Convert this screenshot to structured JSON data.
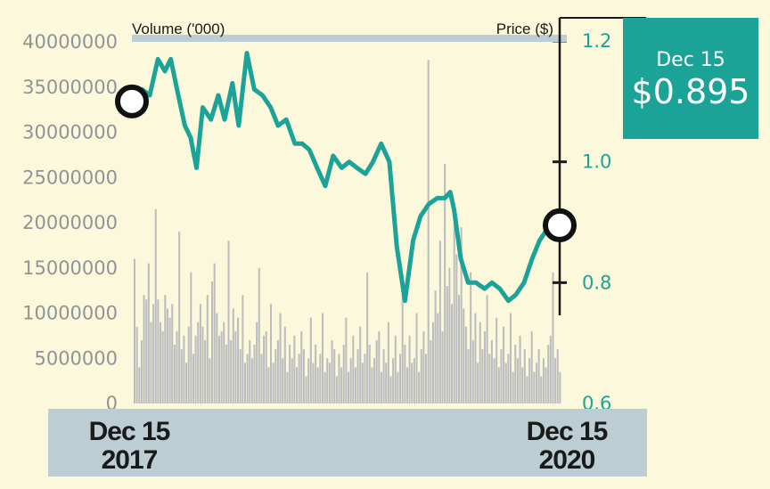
{
  "chart_data": {
    "type": "line",
    "title": "",
    "colors": {
      "price_line": "#1ba397",
      "volume_bars": "#bcbdbf",
      "callout_bg": "#1ba397",
      "date_band": "#bccdd4",
      "axis": "#1a1a1a"
    },
    "volume_axis": {
      "label": "Volume ('000)",
      "ylim": [
        0,
        40000000
      ],
      "ticks": [
        "40000000",
        "35000000",
        "30000000",
        "25000000",
        "20000000",
        "15000000",
        "10000000",
        "5000000",
        "0"
      ]
    },
    "price_axis": {
      "label": "Price ($)",
      "ylim": [
        0.6,
        1.2
      ],
      "ticks": [
        "1.2",
        "1.0",
        "0.8",
        "0.6"
      ]
    },
    "x_axis": {
      "start_label": {
        "line1": "Dec 15",
        "line2": "2017"
      },
      "end_label": {
        "line1": "Dec 15",
        "line2": "2020"
      }
    },
    "callout": {
      "date": "Dec 15",
      "price": "$0.895"
    },
    "series": [
      {
        "axis": "price",
        "x": [
          "2017-12-15",
          "2018-01-05",
          "2018-01-25",
          "2018-02-15",
          "2018-03-05",
          "2018-03-20",
          "2018-04-05",
          "2018-04-25",
          "2018-05-10",
          "2018-05-25",
          "2018-06-10",
          "2018-07-01",
          "2018-07-20",
          "2018-08-05",
          "2018-08-25",
          "2018-09-10",
          "2018-10-01",
          "2018-10-20",
          "2018-11-10",
          "2018-12-01",
          "2018-12-20",
          "2019-01-10",
          "2019-02-01",
          "2019-02-20",
          "2019-03-10",
          "2019-03-30",
          "2019-04-20",
          "2019-05-10",
          "2019-06-01",
          "2019-06-20",
          "2019-07-10",
          "2019-08-01",
          "2019-08-20",
          "2019-09-10",
          "2019-10-01",
          "2019-10-20",
          "2019-11-10",
          "2019-12-01",
          "2019-12-20",
          "2020-01-10",
          "2020-02-01",
          "2020-02-20",
          "2020-03-05",
          "2020-03-15",
          "2020-04-01",
          "2020-04-20",
          "2020-05-10",
          "2020-06-01",
          "2020-06-20",
          "2020-07-10",
          "2020-08-01",
          "2020-08-20",
          "2020-09-10",
          "2020-10-01",
          "2020-10-20",
          "2020-11-10",
          "2020-11-25",
          "2020-12-15"
        ],
        "y": [
          1.1,
          1.12,
          1.11,
          1.17,
          1.15,
          1.17,
          1.12,
          1.06,
          1.04,
          0.99,
          1.09,
          1.07,
          1.11,
          1.07,
          1.13,
          1.06,
          1.18,
          1.12,
          1.11,
          1.09,
          1.06,
          1.07,
          1.03,
          1.03,
          1.02,
          0.99,
          0.96,
          1.01,
          0.99,
          1.0,
          0.99,
          0.98,
          1.0,
          1.03,
          1.0,
          0.86,
          0.77,
          0.87,
          0.91,
          0.93,
          0.94,
          0.94,
          0.95,
          0.92,
          0.84,
          0.8,
          0.8,
          0.79,
          0.8,
          0.79,
          0.77,
          0.78,
          0.8,
          0.84,
          0.87,
          0.89,
          0.9,
          0.895
        ]
      },
      {
        "axis": "volume",
        "x_range": [
          "2017-12-15",
          "2020-12-15"
        ],
        "values": [
          16000000,
          8500000,
          4000000,
          7000000,
          12000000,
          11500000,
          15500000,
          9000000,
          11000000,
          21500000,
          11500000,
          9000000,
          8000000,
          12000000,
          10500000,
          9500000,
          11000000,
          6500000,
          8000000,
          19000000,
          6000000,
          7500000,
          4500000,
          8500000,
          14500000,
          5500000,
          7500000,
          9000000,
          11000000,
          8500000,
          7000000,
          12000000,
          5000000,
          13500000,
          15500000,
          10000000,
          7500000,
          8000000,
          9000000,
          6500000,
          18000000,
          7000000,
          10500000,
          8000000,
          9500000,
          6000000,
          12000000,
          4500000,
          5500000,
          7000000,
          5000000,
          6500000,
          9000000,
          15000000,
          5500000,
          7500000,
          8000000,
          4000000,
          11000000,
          4500000,
          6000000,
          7000000,
          10000000,
          5000000,
          8500000,
          3500000,
          6500000,
          5000000,
          7500000,
          4000000,
          5500000,
          8000000,
          6000000,
          3000000,
          5000000,
          9500000,
          4500000,
          6500000,
          4000000,
          5500000,
          10000000,
          3500000,
          5000000,
          4500000,
          7000000,
          6000000,
          3000000,
          5500000,
          4000000,
          6500000,
          9500000,
          3500000,
          5000000,
          7500000,
          4000000,
          6000000,
          8500000,
          4500000,
          5500000,
          14500000,
          6500000,
          4000000,
          5000000,
          7000000,
          8000000,
          3500000,
          6000000,
          4500000,
          9000000,
          3000000,
          5000000,
          7500000,
          3500000,
          5500000,
          12000000,
          6500000,
          4000000,
          7500000,
          4500000,
          5000000,
          10000000,
          3500000,
          6000000,
          8000000,
          5500000,
          38000000,
          7000000,
          9000000,
          12500000,
          10000000,
          18000000,
          8000000,
          26500000,
          13000000,
          15000000,
          11000000,
          21000000,
          16500000,
          12000000,
          19500000,
          10500000,
          8500000,
          6000000,
          14500000,
          7000000,
          10000000,
          4500000,
          9000000,
          6000000,
          8000000,
          12000000,
          5500000,
          7000000,
          5000000,
          9500000,
          4000000,
          6000000,
          8500000,
          4500000,
          5500000,
          10000000,
          3500000,
          6500000,
          5000000,
          7500000,
          4000000,
          6000000,
          3000000,
          5000000,
          8000000,
          3500000,
          4500000,
          6000000,
          3000000,
          5000000,
          4000000,
          6500000,
          7500000,
          14500000,
          5000000,
          6000000,
          3500000
        ]
      }
    ]
  }
}
